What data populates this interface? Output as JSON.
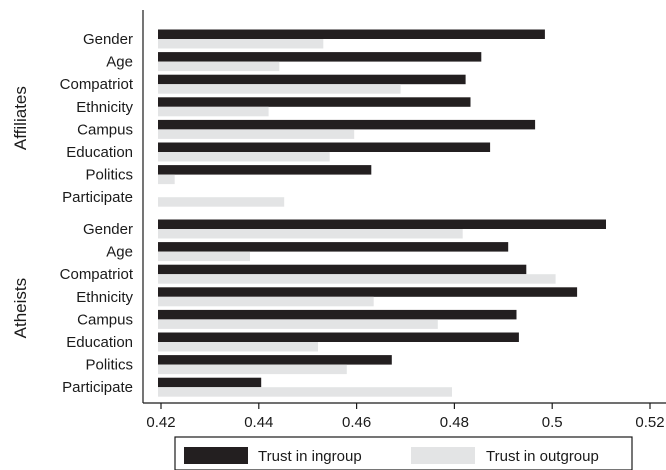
{
  "chart_data": {
    "type": "bar",
    "orientation": "horizontal",
    "groups": [
      {
        "name": "Affiliates",
        "categories": [
          "Gender",
          "Age",
          "Compatriot",
          "Ethnicity",
          "Campus",
          "Education",
          "Politics",
          "Participate"
        ],
        "series": [
          {
            "name": "Trust in ingroup",
            "values": [
              0.4985,
              0.4855,
              0.4823,
              0.4833,
              0.4965,
              0.4873,
              0.463,
              null
            ]
          },
          {
            "name": "Trust in outgroup",
            "values": [
              0.4532,
              0.4442,
              0.469,
              0.442,
              0.4595,
              0.4545,
              0.4228,
              0.4452
            ]
          }
        ]
      },
      {
        "name": "Atheists",
        "categories": [
          "Gender",
          "Age",
          "Compatriot",
          "Ethnicity",
          "Campus",
          "Education",
          "Politics",
          "Participate"
        ],
        "series": [
          {
            "name": "Trust in ingroup",
            "values": [
              0.511,
              0.491,
              0.4947,
              0.5051,
              0.4927,
              0.4932,
              0.4672,
              0.4405
            ]
          },
          {
            "name": "Trust in outgroup",
            "values": [
              0.4817,
              0.4382,
              0.5007,
              0.4635,
              0.4766,
              0.4521,
              0.458,
              0.4795
            ]
          }
        ]
      }
    ],
    "xlim": [
      0.418,
      0.522
    ],
    "xticks": [
      0.42,
      0.44,
      0.46,
      0.48,
      0.5,
      0.52
    ],
    "xtick_labels": [
      "0.42",
      "0.44",
      "0.46",
      "0.48",
      "0.5",
      "0.52"
    ],
    "legend": {
      "placement": "bottom",
      "entries": [
        {
          "label": "Trust in ingroup",
          "color": "#231f20"
        },
        {
          "label": "Trust in outgroup",
          "color": "#e3e4e5"
        }
      ]
    },
    "colors": {
      "ingroup": "#231f20",
      "outgroup": "#e3e4e5",
      "axis": "#1a1a1a"
    },
    "grid": false
  }
}
